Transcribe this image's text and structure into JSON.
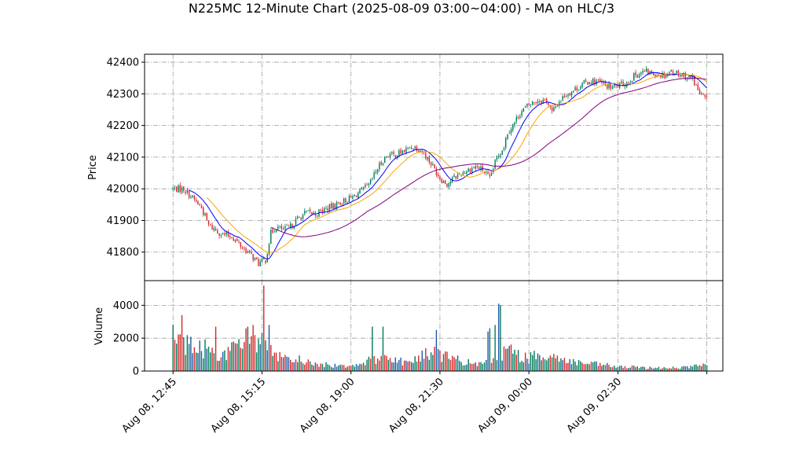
{
  "chart_data": {
    "type": "candlestick",
    "title": "N225MC 12-Minute Chart (2025-08-09 03:00~04:00) - MA on HLC/3",
    "price_panel": {
      "ylabel": "Price",
      "ylim": [
        41710,
        42425
      ],
      "yticks": [
        41800,
        41900,
        42000,
        42100,
        42200,
        42300,
        42400
      ],
      "grid": true
    },
    "volume_panel": {
      "ylabel": "Volume",
      "ylim": [
        0,
        5500
      ],
      "yticks": [
        0,
        2000,
        4000
      ],
      "grid": true
    },
    "xlim": [
      -16,
      309
    ],
    "x_ticks": [
      {
        "pos": 0,
        "label": "Aug 08, 12:45"
      },
      {
        "pos": 50,
        "label": "Aug 08, 15:15"
      },
      {
        "pos": 100,
        "label": "Aug 08, 19:00"
      },
      {
        "pos": 150,
        "label": "Aug 08, 21:30"
      },
      {
        "pos": 200,
        "label": "Aug 09, 00:00"
      },
      {
        "pos": 250,
        "label": "Aug 09, 02:30"
      },
      {
        "pos": 300,
        "label": ""
      }
    ],
    "close_path": [
      [
        0,
        42000
      ],
      [
        6,
        42000
      ],
      [
        12,
        41965
      ],
      [
        16,
        41940
      ],
      [
        20,
        41885
      ],
      [
        24,
        41870
      ],
      [
        28,
        41855
      ],
      [
        33,
        41850
      ],
      [
        38,
        41820
      ],
      [
        44,
        41790
      ],
      [
        48,
        41765
      ],
      [
        52,
        41775
      ],
      [
        55,
        41860
      ],
      [
        58,
        41880
      ],
      [
        62,
        41870
      ],
      [
        66,
        41880
      ],
      [
        70,
        41905
      ],
      [
        75,
        41925
      ],
      [
        80,
        41920
      ],
      [
        85,
        41935
      ],
      [
        90,
        41945
      ],
      [
        95,
        41960
      ],
      [
        100,
        41970
      ],
      [
        105,
        41990
      ],
      [
        110,
        42010
      ],
      [
        115,
        42065
      ],
      [
        118,
        42090
      ],
      [
        121,
        42110
      ],
      [
        124,
        42105
      ],
      [
        130,
        42120
      ],
      [
        135,
        42135
      ],
      [
        140,
        42120
      ],
      [
        145,
        42080
      ],
      [
        150,
        42035
      ],
      [
        154,
        42015
      ],
      [
        158,
        42035
      ],
      [
        162,
        42050
      ],
      [
        166,
        42060
      ],
      [
        170,
        42070
      ],
      [
        174,
        42060
      ],
      [
        178,
        42030
      ],
      [
        182,
        42100
      ],
      [
        186,
        42135
      ],
      [
        188,
        42180
      ],
      [
        191,
        42200
      ],
      [
        195,
        42240
      ],
      [
        200,
        42265
      ],
      [
        205,
        42280
      ],
      [
        210,
        42280
      ],
      [
        213,
        42240
      ],
      [
        216,
        42270
      ],
      [
        220,
        42295
      ],
      [
        226,
        42315
      ],
      [
        230,
        42330
      ],
      [
        234,
        42340
      ],
      [
        238,
        42340
      ],
      [
        242,
        42330
      ],
      [
        246,
        42320
      ],
      [
        250,
        42325
      ],
      [
        255,
        42335
      ],
      [
        260,
        42360
      ],
      [
        265,
        42370
      ],
      [
        270,
        42365
      ],
      [
        275,
        42360
      ],
      [
        280,
        42370
      ],
      [
        284,
        42365
      ],
      [
        288,
        42355
      ],
      [
        292,
        42350
      ],
      [
        296,
        42300
      ],
      [
        300,
        42280
      ]
    ],
    "volume_path": [
      [
        0,
        1400
      ],
      [
        4,
        2000
      ],
      [
        8,
        1700
      ],
      [
        12,
        1300
      ],
      [
        18,
        1400
      ],
      [
        24,
        1100
      ],
      [
        30,
        1000
      ],
      [
        38,
        1700
      ],
      [
        44,
        2000
      ],
      [
        50,
        1900
      ],
      [
        56,
        1000
      ],
      [
        60,
        800
      ],
      [
        66,
        600
      ],
      [
        72,
        700
      ],
      [
        80,
        400
      ],
      [
        90,
        350
      ],
      [
        100,
        350
      ],
      [
        108,
        550
      ],
      [
        115,
        750
      ],
      [
        120,
        850
      ],
      [
        126,
        700
      ],
      [
        132,
        500
      ],
      [
        138,
        800
      ],
      [
        144,
        1100
      ],
      [
        150,
        1050
      ],
      [
        156,
        800
      ],
      [
        162,
        600
      ],
      [
        168,
        450
      ],
      [
        174,
        400
      ],
      [
        180,
        750
      ],
      [
        186,
        1200
      ],
      [
        190,
        1200
      ],
      [
        196,
        850
      ],
      [
        202,
        800
      ],
      [
        208,
        1100
      ],
      [
        214,
        850
      ],
      [
        220,
        650
      ],
      [
        226,
        550
      ],
      [
        232,
        450
      ],
      [
        238,
        400
      ],
      [
        244,
        350
      ],
      [
        250,
        250
      ],
      [
        258,
        230
      ],
      [
        266,
        200
      ],
      [
        274,
        200
      ],
      [
        282,
        200
      ],
      [
        290,
        250
      ],
      [
        300,
        400
      ]
    ],
    "volume_spikes": [
      [
        0,
        2800
      ],
      [
        5,
        3400
      ],
      [
        24,
        2700
      ],
      [
        42,
        2700
      ],
      [
        45,
        2800
      ],
      [
        51,
        5200
      ],
      [
        54,
        2800
      ],
      [
        112,
        2700
      ],
      [
        118,
        2700
      ],
      [
        148,
        2500
      ],
      [
        177,
        2400
      ],
      [
        178,
        2600
      ],
      [
        181,
        2800
      ],
      [
        183,
        4100
      ],
      [
        184,
        4000
      ]
    ],
    "series": [
      {
        "color": "#0000ff",
        "lag": 5,
        "width": 1.0
      },
      {
        "color": "#ffa500",
        "lag": 10,
        "width": 1.0
      },
      {
        "color": "#800080",
        "lag": 28,
        "width": 1.0
      }
    ],
    "colors": {
      "up": "#007a5a",
      "down": "#d62728",
      "grid": "#9e9e9e"
    }
  }
}
